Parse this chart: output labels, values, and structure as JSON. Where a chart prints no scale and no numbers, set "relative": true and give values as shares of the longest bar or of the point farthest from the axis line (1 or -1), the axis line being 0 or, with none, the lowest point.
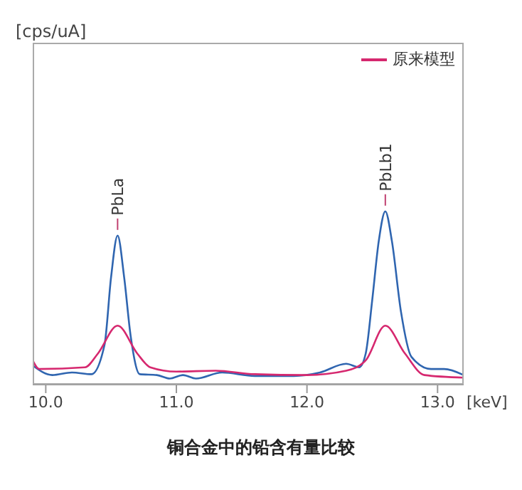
{
  "chart_data": {
    "type": "line",
    "title": "铜合金中的铅含有量比较",
    "xlabel": "[keV]",
    "relative": true,
    "xlim": [
      9.9,
      13.2
    ],
    "xticks": [
      {
        "value": 10,
        "label": "10.0"
      },
      {
        "value": 11,
        "label": "11.0"
      },
      {
        "value": 12,
        "label": "12.0"
      },
      {
        "value": 13,
        "label": "13.0"
      }
    ],
    "legend": "top right",
    "grid": false,
    "marker": "none",
    "line_style": "solid",
    "annotations": [
      "[cps/uA]",
      {
        "text": "PbLa",
        "x": 10.55,
        "y": 0.86
      },
      {
        "text": "PbLb1",
        "x": 12.6,
        "y": 1
      }
    ],
    "series": [
      {
        "color": "#2f65b0",
        "x": [
          9.9,
          10.05,
          10.2,
          10.35,
          10.45,
          10.5,
          10.55,
          10.6,
          10.65,
          10.72,
          10.85,
          10.95,
          11.05,
          11.15,
          11.35,
          11.6,
          11.9,
          12.1,
          12.3,
          12.4,
          12.45,
          12.5,
          12.55,
          12.6,
          12.65,
          12.72,
          12.8,
          12.95,
          13.05,
          13.2
        ],
        "values": [
          0.11,
          0.055,
          0.07,
          0.06,
          0.23,
          0.62,
          0.86,
          0.62,
          0.28,
          0.06,
          0.055,
          0.035,
          0.055,
          0.035,
          0.07,
          0.05,
          0.05,
          0.07,
          0.12,
          0.1,
          0.18,
          0.49,
          0.83,
          1,
          0.83,
          0.42,
          0.16,
          0.09,
          0.09,
          0.055
        ]
      },
      {
        "name": "原来模型",
        "color": "#d6286f",
        "x": [
          9.9,
          9.95,
          10.3,
          10.4,
          10.55,
          10.7,
          10.8,
          11.0,
          11.3,
          11.6,
          12.0,
          12.3,
          12.45,
          12.6,
          12.75,
          12.9,
          13.2
        ],
        "values": [
          0.14,
          0.09,
          0.1,
          0.18,
          0.34,
          0.18,
          0.1,
          0.075,
          0.08,
          0.06,
          0.055,
          0.08,
          0.14,
          0.34,
          0.18,
          0.055,
          0.04
        ]
      }
    ]
  }
}
